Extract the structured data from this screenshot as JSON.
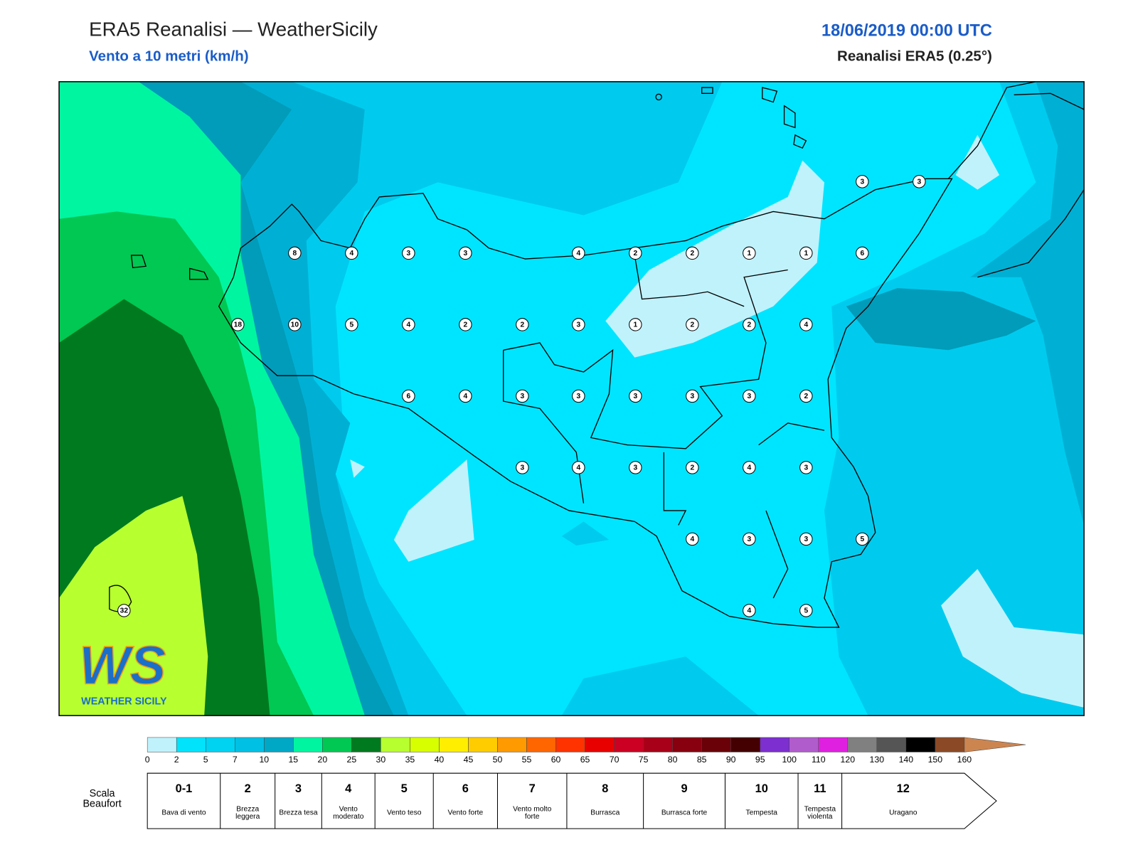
{
  "header": {
    "title": "ERA5 Reanalisi — WeatherSicily",
    "subtitle": "Vento a 10 metri (km/h)",
    "date": "18/06/2019 00:00 UTC",
    "source": "Reanalisi ERA5 (0.25°)"
  },
  "map": {
    "stations": [
      3,
      3,
      8,
      4,
      3,
      3,
      4,
      2,
      2,
      1,
      1,
      6,
      18,
      10,
      5,
      4,
      2,
      2,
      3,
      1,
      2,
      2,
      4,
      6,
      4,
      3,
      3,
      3,
      3,
      3,
      2,
      3,
      4,
      3,
      2,
      4,
      3,
      4,
      3,
      3,
      5,
      4,
      5,
      32
    ]
  },
  "logo": {
    "mark": "WS",
    "name": "WEATHER SICILY"
  },
  "colorbar": {
    "ticks": [
      0,
      2,
      5,
      7,
      10,
      15,
      20,
      25,
      30,
      35,
      40,
      45,
      50,
      55,
      60,
      65,
      70,
      75,
      80,
      85,
      90,
      95,
      100,
      110,
      120,
      130,
      140,
      150,
      160
    ],
    "colors": [
      "#c0f2fc",
      "#00e3fb",
      "#00d2f2",
      "#00c0e4",
      "#00a8c6",
      "#00f5a0",
      "#00c853",
      "#007a1f",
      "#b8ff30",
      "#d8ff00",
      "#ffee00",
      "#ffcc00",
      "#ff9a00",
      "#ff6600",
      "#ff3300",
      "#e80000",
      "#cc0022",
      "#a80018",
      "#880010",
      "#6a0008",
      "#440000",
      "#7d2fd0",
      "#b05ccc",
      "#e020e0",
      "#808080",
      "#555555",
      "#000000",
      "#8b4a25",
      "#cd8550"
    ]
  },
  "beaufort": {
    "label": "Scala Beaufort",
    "levels": [
      {
        "force": "0-1",
        "name": "Bava di vento"
      },
      {
        "force": "2",
        "name": "Brezza leggera"
      },
      {
        "force": "3",
        "name": "Brezza tesa"
      },
      {
        "force": "4",
        "name": "Vento moderato"
      },
      {
        "force": "5",
        "name": "Vento teso"
      },
      {
        "force": "6",
        "name": "Vento forte"
      },
      {
        "force": "7",
        "name": "Vento molto forte"
      },
      {
        "force": "8",
        "name": "Burrasca"
      },
      {
        "force": "9",
        "name": "Burrasca forte"
      },
      {
        "force": "10",
        "name": "Tempesta"
      },
      {
        "force": "11",
        "name": "Tempesta violenta"
      },
      {
        "force": "12",
        "name": "Uragano"
      }
    ]
  }
}
